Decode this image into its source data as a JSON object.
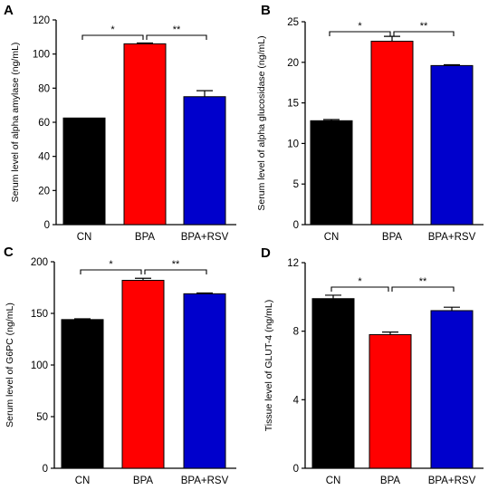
{
  "chart_data": [
    {
      "panel": "A",
      "type": "bar",
      "categories": [
        "CN",
        "BPA",
        "BPA+RSV"
      ],
      "values": [
        62.5,
        106,
        75
      ],
      "errors": [
        0,
        0.5,
        3.5
      ],
      "colors": [
        "#000000",
        "#ff0000",
        "#0000cc"
      ],
      "ylabel": "Serum level of alpha amylase (ng/mL)",
      "ylim": [
        0,
        120
      ],
      "yticks": [
        0,
        20,
        40,
        60,
        80,
        100,
        120
      ],
      "significance": [
        {
          "from": 0,
          "to": 1,
          "label": "*"
        },
        {
          "from": 1,
          "to": 2,
          "label": "**"
        }
      ]
    },
    {
      "panel": "B",
      "type": "bar",
      "categories": [
        "CN",
        "BPA",
        "BPA+RSV"
      ],
      "values": [
        12.8,
        22.6,
        19.6
      ],
      "errors": [
        0.15,
        0.6,
        0.1
      ],
      "colors": [
        "#000000",
        "#ff0000",
        "#0000cc"
      ],
      "ylabel": "Serum level of alpha glucosidase (ng/mL)",
      "ylim": [
        0,
        25
      ],
      "yticks": [
        0,
        5,
        10,
        15,
        20,
        25
      ],
      "significance": [
        {
          "from": 0,
          "to": 1,
          "label": "*"
        },
        {
          "from": 1,
          "to": 2,
          "label": "**"
        }
      ]
    },
    {
      "panel": "C",
      "type": "bar",
      "categories": [
        "CN",
        "BPA",
        "BPA+RSV"
      ],
      "values": [
        144,
        182,
        169
      ],
      "errors": [
        0.8,
        2,
        0.8
      ],
      "colors": [
        "#000000",
        "#ff0000",
        "#0000cc"
      ],
      "ylabel": "Serum level of G6PC (ng/mL)",
      "ylim": [
        0,
        200
      ],
      "yticks": [
        0,
        50,
        100,
        150,
        200
      ],
      "significance": [
        {
          "from": 0,
          "to": 1,
          "label": "*"
        },
        {
          "from": 1,
          "to": 2,
          "label": "**"
        }
      ]
    },
    {
      "panel": "D",
      "type": "bar",
      "categories": [
        "CN",
        "BPA",
        "BPA+RSV"
      ],
      "values": [
        9.9,
        7.8,
        9.2
      ],
      "errors": [
        0.2,
        0.15,
        0.2
      ],
      "colors": [
        "#000000",
        "#ff0000",
        "#0000cc"
      ],
      "ylabel": "Tissue level of GLUT-4 (ng/mL)",
      "ylim": [
        0,
        12
      ],
      "yticks": [
        0,
        4,
        8,
        12
      ],
      "significance": [
        {
          "from": 0,
          "to": 1,
          "label": "*"
        },
        {
          "from": 1,
          "to": 2,
          "label": "**"
        }
      ]
    }
  ]
}
